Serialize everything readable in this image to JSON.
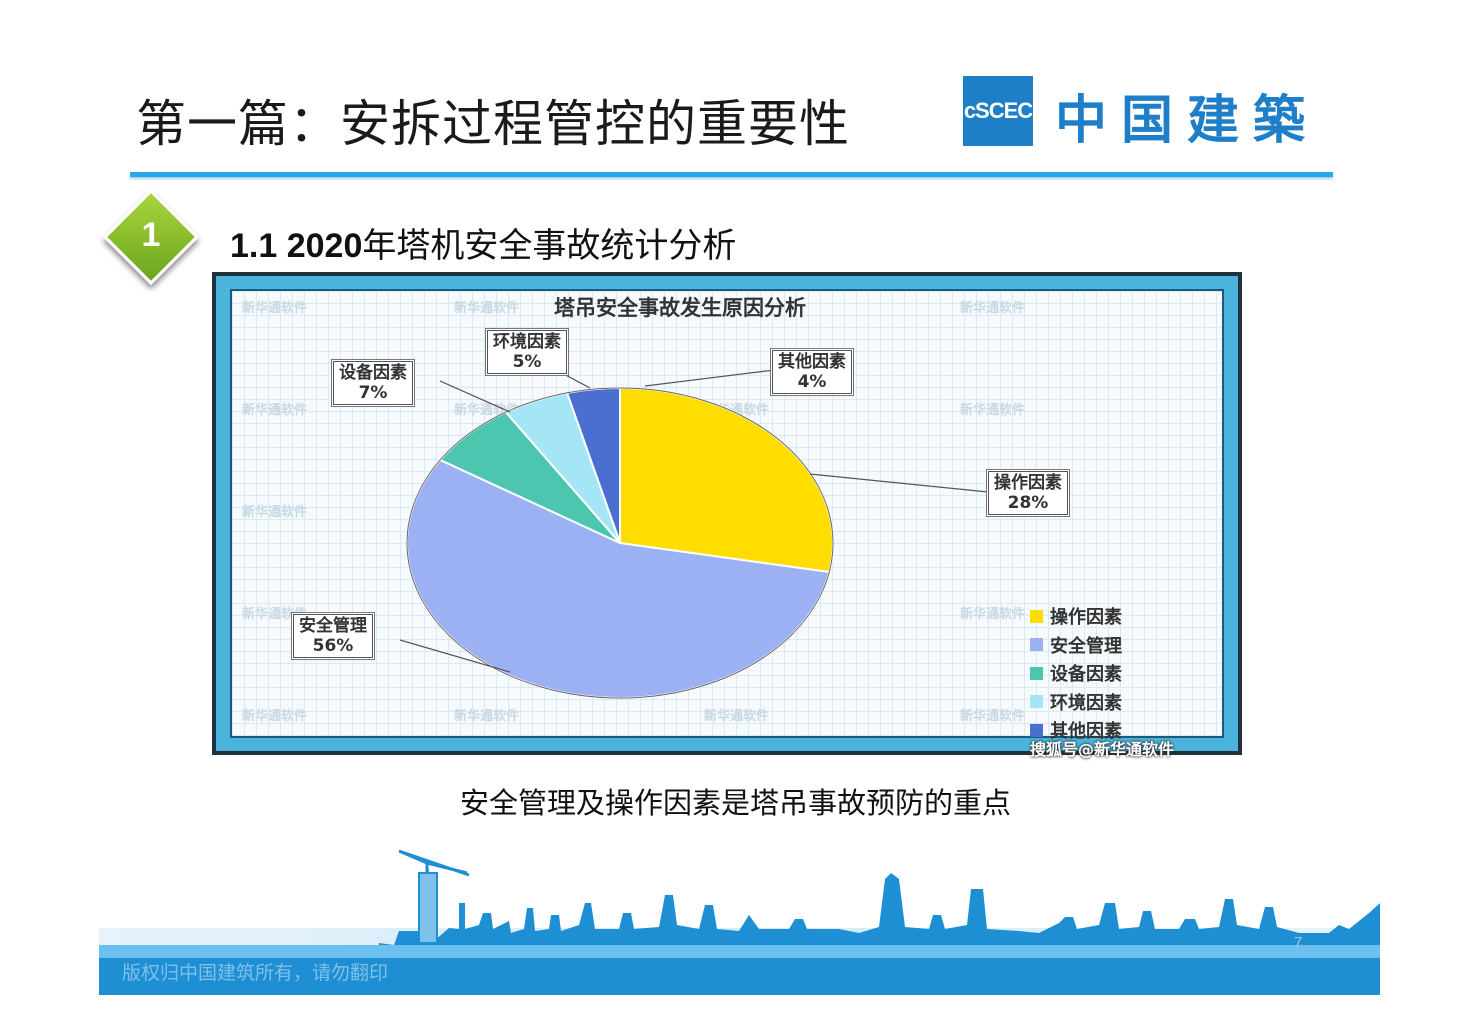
{
  "page": {
    "title": "第一篇：安拆过程管控的重要性",
    "logo_mark": "cSCEC",
    "logo_text": "中国建築",
    "section_number": "1",
    "section_title_num": "1.1 2020",
    "section_title_rest": "年塔机安全事故统计分析",
    "caption": "安全管理及操作因素是塔吊事故预防的重点",
    "copyright": "版权归中国建筑所有，请勿翻印",
    "page_number": "7"
  },
  "watermark": "新华通软件",
  "credit": "搜狐号@新华通软件",
  "colors": {
    "accent": "#29a7e8",
    "brand": "#1e7fc8",
    "badge": "#8dc63f",
    "frame": "#4ab4dc"
  },
  "chart_data": {
    "type": "pie",
    "title": "塔吊安全事故发生原因分析",
    "slices": [
      {
        "name": "操作因素",
        "value": 28,
        "label": "28%",
        "color": "#ffdd00"
      },
      {
        "name": "安全管理",
        "value": 56,
        "label": "56%",
        "color": "#9cb0f4"
      },
      {
        "name": "设备因素",
        "value": 7,
        "label": "7%",
        "color": "#4dc6b0"
      },
      {
        "name": "环境因素",
        "value": 5,
        "label": "5%",
        "color": "#a4e6f6"
      },
      {
        "name": "其他因素",
        "value": 4,
        "label": "4%",
        "color": "#4a6fd0"
      }
    ],
    "legend": [
      "操作因素",
      "安全管理",
      "设备因素",
      "环境因素",
      "其他因素"
    ],
    "legend_position": "bottom-right"
  }
}
